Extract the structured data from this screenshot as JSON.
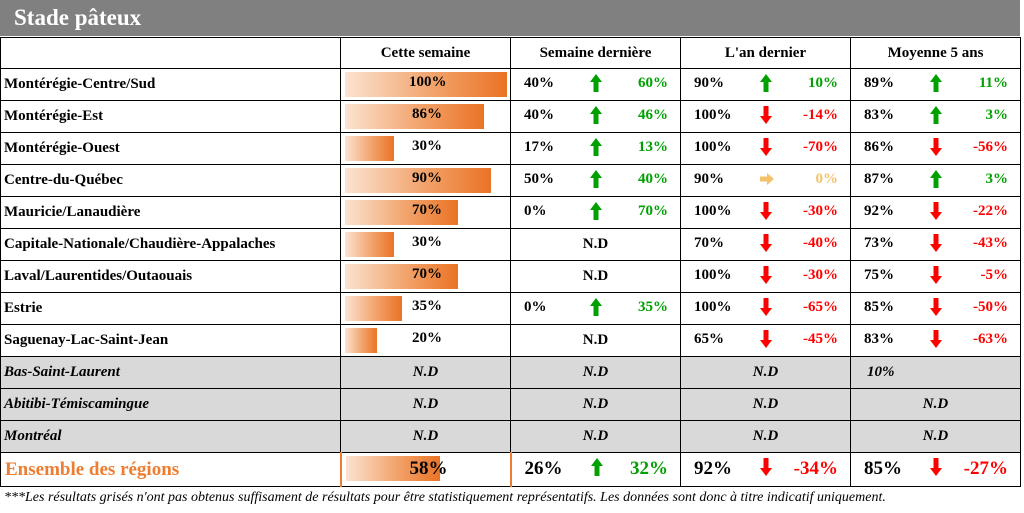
{
  "title": "Stade pâteux",
  "columns": {
    "region": "",
    "this_week": "Cette semaine",
    "last_week": "Semaine dernière",
    "last_year": "L'an dernier",
    "avg5": "Moyenne 5 ans"
  },
  "colors": {
    "up": "#00a000",
    "down": "#ff0000",
    "flat": "#f4c26b",
    "bar": "#ea7325"
  },
  "rows": [
    {
      "region": "Montérégie-Centre/Sud",
      "this_week": "100%",
      "this_week_value": 100,
      "last_week": {
        "value": "40%",
        "trend": "up",
        "change": "60%"
      },
      "last_year": {
        "value": "90%",
        "trend": "up",
        "change": "10%"
      },
      "avg5": {
        "value": "89%",
        "trend": "up",
        "change": "11%"
      }
    },
    {
      "region": "Montérégie-Est",
      "this_week": "86%",
      "this_week_value": 86,
      "last_week": {
        "value": "40%",
        "trend": "up",
        "change": "46%"
      },
      "last_year": {
        "value": "100%",
        "trend": "down",
        "change": "-14%"
      },
      "avg5": {
        "value": "83%",
        "trend": "up",
        "change": "3%"
      }
    },
    {
      "region": "Montérégie-Ouest",
      "this_week": "30%",
      "this_week_value": 30,
      "last_week": {
        "value": "17%",
        "trend": "up",
        "change": "13%"
      },
      "last_year": {
        "value": "100%",
        "trend": "down",
        "change": "-70%"
      },
      "avg5": {
        "value": "86%",
        "trend": "down",
        "change": "-56%"
      }
    },
    {
      "region": "Centre-du-Québec",
      "this_week": "90%",
      "this_week_value": 90,
      "last_week": {
        "value": "50%",
        "trend": "up",
        "change": "40%"
      },
      "last_year": {
        "value": "90%",
        "trend": "flat",
        "change": "0%"
      },
      "avg5": {
        "value": "87%",
        "trend": "up",
        "change": "3%"
      }
    },
    {
      "region": "Mauricie/Lanaudière",
      "this_week": "70%",
      "this_week_value": 70,
      "last_week": {
        "value": "0%",
        "trend": "up",
        "change": "70%"
      },
      "last_year": {
        "value": "100%",
        "trend": "down",
        "change": "-30%"
      },
      "avg5": {
        "value": "92%",
        "trend": "down",
        "change": "-22%"
      }
    },
    {
      "region": "Capitale-Nationale/Chaudière-Appalaches",
      "this_week": "30%",
      "this_week_value": 30,
      "last_week": {
        "nd": "N.D"
      },
      "last_year": {
        "value": "70%",
        "trend": "down",
        "change": "-40%"
      },
      "avg5": {
        "value": "73%",
        "trend": "down",
        "change": "-43%"
      }
    },
    {
      "region": "Laval/Laurentides/Outaouais",
      "this_week": "70%",
      "this_week_value": 70,
      "last_week": {
        "nd": "N.D"
      },
      "last_year": {
        "value": "100%",
        "trend": "down",
        "change": "-30%"
      },
      "avg5": {
        "value": "75%",
        "trend": "down",
        "change": "-5%"
      }
    },
    {
      "region": "Estrie",
      "this_week": "35%",
      "this_week_value": 35,
      "last_week": {
        "value": "0%",
        "trend": "up",
        "change": "35%"
      },
      "last_year": {
        "value": "100%",
        "trend": "down",
        "change": "-65%"
      },
      "avg5": {
        "value": "85%",
        "trend": "down",
        "change": "-50%"
      }
    },
    {
      "region": "Saguenay-Lac-Saint-Jean",
      "this_week": "20%",
      "this_week_value": 20,
      "last_week": {
        "nd": "N.D"
      },
      "last_year": {
        "value": "65%",
        "trend": "down",
        "change": "-45%"
      },
      "avg5": {
        "value": "83%",
        "trend": "down",
        "change": "-63%"
      }
    }
  ],
  "grey_rows": [
    {
      "region": "Bas-Saint-Laurent",
      "this_week": "N.D",
      "last_week": "N.D",
      "last_year": "N.D",
      "avg5": "10%"
    },
    {
      "region": "Abitibi-Témiscamingue",
      "this_week": "N.D",
      "last_week": "N.D",
      "last_year": "N.D",
      "avg5": "N.D"
    },
    {
      "region": "Montréal",
      "this_week": "N.D",
      "last_week": "N.D",
      "last_year": "N.D",
      "avg5": "N.D"
    }
  ],
  "total": {
    "region": "Ensemble des régions",
    "this_week": "58%",
    "this_week_value": 58,
    "last_week": {
      "value": "26%",
      "trend": "up",
      "change": "32%"
    },
    "last_year": {
      "value": "92%",
      "trend": "down",
      "change": "-34%"
    },
    "avg5": {
      "value": "85%",
      "trend": "down",
      "change": "-27%"
    }
  },
  "footnote": "***Les résultats grisés n'ont pas obtenus suffisament de résultats pour être statistiquement représentatifs. Les données sont donc à titre indicatif uniquement."
}
